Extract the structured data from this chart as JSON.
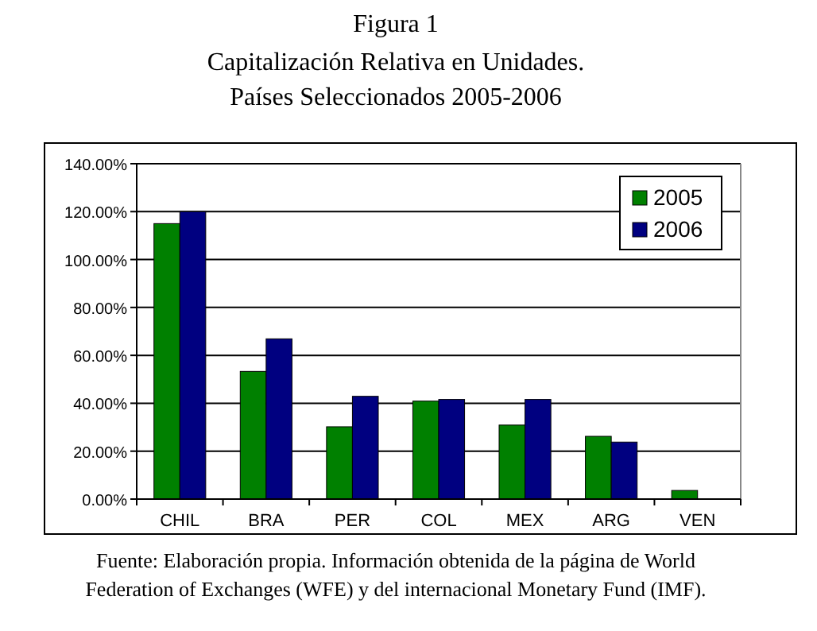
{
  "chart_data": {
    "type": "bar",
    "title": "Figura 1",
    "subtitle": "Capitalización Relativa en Unidades.\nPaíses Seleccionados 2005-2006",
    "categories": [
      "CHIL",
      "BRA",
      "PER",
      "COL",
      "MEX",
      "ARG",
      "VEN"
    ],
    "series": [
      {
        "name": "2005",
        "color": "#008000",
        "values": [
          115,
          53.3,
          30.2,
          40.9,
          30.9,
          26.2,
          3.6
        ]
      },
      {
        "name": "2006",
        "color": "#000080",
        "values": [
          120,
          66.9,
          42.9,
          41.6,
          41.6,
          23.8,
          null
        ]
      }
    ],
    "ylim": [
      0,
      140
    ],
    "yticks": [
      {
        "value": 0,
        "label": "0.00%"
      },
      {
        "value": 20,
        "label": "20.00%"
      },
      {
        "value": 40,
        "label": "40.00%"
      },
      {
        "value": 60,
        "label": "60.00%"
      },
      {
        "value": 80,
        "label": "80.00%"
      },
      {
        "value": 100,
        "label": "100.00%"
      },
      {
        "value": 120,
        "label": "120.00%"
      },
      {
        "value": 140,
        "label": "140.00%"
      }
    ],
    "grid": "y",
    "legend": "top right",
    "annotations": [
      "Fuente: Elaboración propia. Información obtenida de la página de World\nFederation of Exchanges (WFE) y del internacional Monetary Fund (IMF)."
    ]
  }
}
